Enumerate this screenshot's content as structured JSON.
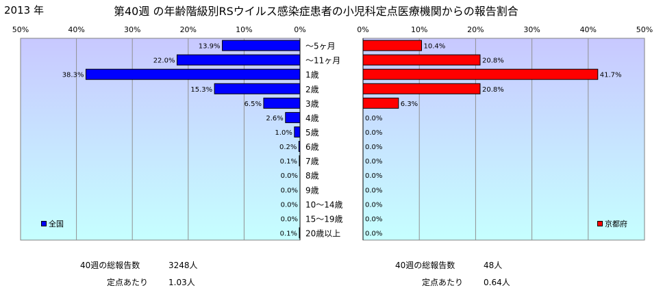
{
  "header": {
    "year": "2013 年",
    "title": "第40週 の年齢階級別RSウイルス感染症患者の小児科定点医療機関からの報告割合"
  },
  "colors": {
    "national": "#0000ff",
    "kyoto": "#ff0000",
    "plot_top": "#c8c8ff",
    "plot_bottom": "#c6ffff"
  },
  "chart_data": [
    {
      "type": "bar",
      "orientation": "horizontal",
      "direction": "right-to-left",
      "categories": [
        "～5ヶ月",
        "～11ヶ月",
        "1歳",
        "2歳",
        "3歳",
        "4歳",
        "5歳",
        "6歳",
        "7歳",
        "8歳",
        "9歳",
        "10～14歳",
        "15～19歳",
        "20歳以上"
      ],
      "series": [
        {
          "name": "全国",
          "values": [
            13.9,
            22.0,
            38.3,
            15.3,
            6.5,
            2.6,
            1.0,
            0.2,
            0.1,
            0.0,
            0.0,
            0.0,
            0.0,
            0.1
          ]
        }
      ],
      "value_labels": [
        "13.9%",
        "22.0%",
        "38.3%",
        "15.3%",
        "6.5%",
        "2.6%",
        "1.0%",
        "0.2%",
        "0.1%",
        "0.0%",
        "0.0%",
        "0.0%",
        "0.0%",
        "0.1%"
      ],
      "xlim": [
        0,
        50
      ],
      "ticks": [
        "50%",
        "40%",
        "30%",
        "20%",
        "10%",
        "0%"
      ],
      "legend": "bottom-left",
      "grid": true
    },
    {
      "type": "bar",
      "orientation": "horizontal",
      "direction": "left-to-right",
      "categories": [
        "～5ヶ月",
        "～11ヶ月",
        "1歳",
        "2歳",
        "3歳",
        "4歳",
        "5歳",
        "6歳",
        "7歳",
        "8歳",
        "9歳",
        "10～14歳",
        "15～19歳",
        "20歳以上"
      ],
      "series": [
        {
          "name": "京都府",
          "values": [
            10.4,
            20.8,
            41.7,
            20.8,
            6.3,
            0.0,
            0.0,
            0.0,
            0.0,
            0.0,
            0.0,
            0.0,
            0.0,
            0.0
          ]
        }
      ],
      "value_labels": [
        "10.4%",
        "20.8%",
        "41.7%",
        "20.8%",
        "6.3%",
        "0.0%",
        "0.0%",
        "0.0%",
        "0.0%",
        "0.0%",
        "0.0%",
        "0.0%",
        "0.0%",
        "0.0%"
      ],
      "xlim": [
        0,
        50
      ],
      "ticks": [
        "0%",
        "10%",
        "20%",
        "30%",
        "40%",
        "50%"
      ],
      "legend": "bottom-right",
      "grid": true
    }
  ],
  "stats": {
    "national": {
      "total_label": "40週の総報告数",
      "total_value": "3248人",
      "per_label": "定点あたり",
      "per_value": "1.03人"
    },
    "kyoto": {
      "total_label": "40週の総報告数",
      "total_value": "48人",
      "per_label": "定点あたり",
      "per_value": "0.64人"
    }
  }
}
